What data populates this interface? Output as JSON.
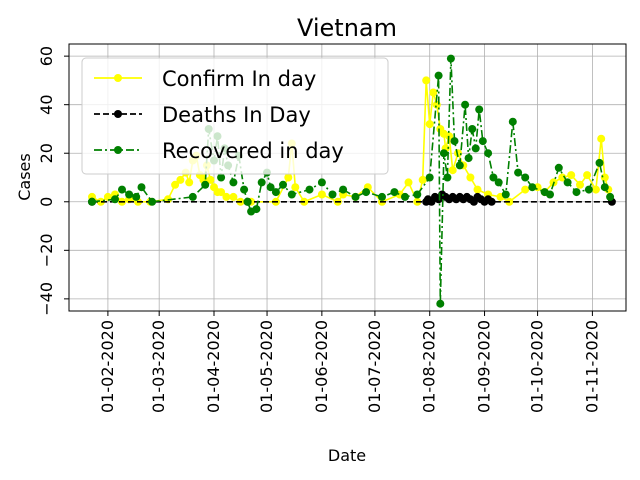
{
  "chart_data": {
    "type": "line",
    "title": "Vietnam",
    "xlabel": "Date",
    "ylabel": "Cases",
    "x_range": [
      "2020-01-10",
      "2020-11-20"
    ],
    "ylim": [
      -45,
      65
    ],
    "grid": true,
    "legend_placement": "top-left",
    "x_ticks": [
      "01-02-2020",
      "01-03-2020",
      "01-04-2020",
      "01-05-2020",
      "01-06-2020",
      "01-07-2020",
      "01-08-2020",
      "01-09-2020",
      "01-10-2020",
      "01-11-2020"
    ],
    "y_ticks": [
      "−40",
      "−20",
      "0",
      "20",
      "40",
      "60"
    ],
    "series": [
      {
        "name": "Confirm In day",
        "color": "#ffff00",
        "style": "solid",
        "points": [
          [
            "2020-01-23",
            2
          ],
          [
            "2020-01-28",
            0
          ],
          [
            "2020-02-01",
            2
          ],
          [
            "2020-02-05",
            3
          ],
          [
            "2020-02-09",
            0
          ],
          [
            "2020-02-13",
            1
          ],
          [
            "2020-02-18",
            0
          ],
          [
            "2020-02-25",
            0
          ],
          [
            "2020-03-06",
            1
          ],
          [
            "2020-03-10",
            7
          ],
          [
            "2020-03-13",
            9
          ],
          [
            "2020-03-16",
            12
          ],
          [
            "2020-03-18",
            8
          ],
          [
            "2020-03-20",
            17
          ],
          [
            "2020-03-22",
            19
          ],
          [
            "2020-03-24",
            11
          ],
          [
            "2020-03-26",
            9
          ],
          [
            "2020-03-28",
            15
          ],
          [
            "2020-03-30",
            9
          ],
          [
            "2020-04-01",
            6
          ],
          [
            "2020-04-03",
            4
          ],
          [
            "2020-04-05",
            4
          ],
          [
            "2020-04-08",
            2
          ],
          [
            "2020-04-12",
            2
          ],
          [
            "2020-04-16",
            0
          ],
          [
            "2020-04-22",
            0
          ],
          [
            "2020-05-06",
            0
          ],
          [
            "2020-05-13",
            10
          ],
          [
            "2020-05-15",
            24
          ],
          [
            "2020-05-17",
            6
          ],
          [
            "2020-05-22",
            0
          ],
          [
            "2020-06-01",
            3
          ],
          [
            "2020-06-10",
            0
          ],
          [
            "2020-06-13",
            3
          ],
          [
            "2020-06-20",
            2
          ],
          [
            "2020-06-27",
            6
          ],
          [
            "2020-07-05",
            0
          ],
          [
            "2020-07-15",
            3
          ],
          [
            "2020-07-20",
            8
          ],
          [
            "2020-07-25",
            0
          ],
          [
            "2020-07-28",
            9
          ],
          [
            "2020-07-30",
            50
          ],
          [
            "2020-08-01",
            32
          ],
          [
            "2020-08-03",
            45
          ],
          [
            "2020-08-05",
            40
          ],
          [
            "2020-08-07",
            30
          ],
          [
            "2020-08-09",
            28
          ],
          [
            "2020-08-10",
            22
          ],
          [
            "2020-08-12",
            27
          ],
          [
            "2020-08-14",
            13
          ],
          [
            "2020-08-17",
            20
          ],
          [
            "2020-08-20",
            15
          ],
          [
            "2020-08-24",
            10
          ],
          [
            "2020-08-28",
            5
          ],
          [
            "2020-09-03",
            3
          ],
          [
            "2020-09-10",
            2
          ],
          [
            "2020-09-15",
            0
          ],
          [
            "2020-09-24",
            5
          ],
          [
            "2020-10-01",
            6
          ],
          [
            "2020-10-05",
            4
          ],
          [
            "2020-10-10",
            8
          ],
          [
            "2020-10-15",
            10
          ],
          [
            "2020-10-20",
            11
          ],
          [
            "2020-10-25",
            7
          ],
          [
            "2020-10-29",
            11
          ],
          [
            "2020-11-03",
            5
          ],
          [
            "2020-11-06",
            26
          ],
          [
            "2020-11-08",
            10
          ],
          [
            "2020-11-10",
            5
          ]
        ]
      },
      {
        "name": "Deaths In Day",
        "color": "#000000",
        "style": "dashed",
        "points": [
          [
            "2020-01-23",
            0
          ],
          [
            "2020-04-20",
            0
          ],
          [
            "2020-07-30",
            0
          ],
          [
            "2020-07-31",
            1
          ],
          [
            "2020-08-02",
            0
          ],
          [
            "2020-08-04",
            2
          ],
          [
            "2020-08-06",
            1
          ],
          [
            "2020-08-08",
            3
          ],
          [
            "2020-08-10",
            2
          ],
          [
            "2020-08-12",
            1
          ],
          [
            "2020-08-14",
            2
          ],
          [
            "2020-08-16",
            1
          ],
          [
            "2020-08-18",
            2
          ],
          [
            "2020-08-20",
            1
          ],
          [
            "2020-08-22",
            2
          ],
          [
            "2020-08-24",
            1
          ],
          [
            "2020-08-26",
            0
          ],
          [
            "2020-08-28",
            2
          ],
          [
            "2020-08-30",
            1
          ],
          [
            "2020-09-01",
            0
          ],
          [
            "2020-09-03",
            1
          ],
          [
            "2020-09-05",
            0
          ],
          [
            "2020-11-12",
            0
          ]
        ]
      },
      {
        "name": "Recovered in day",
        "color": "#008000",
        "style": "dashdot",
        "points": [
          [
            "2020-01-23",
            0
          ],
          [
            "2020-02-05",
            1
          ],
          [
            "2020-02-09",
            5
          ],
          [
            "2020-02-13",
            3
          ],
          [
            "2020-02-17",
            2
          ],
          [
            "2020-02-20",
            6
          ],
          [
            "2020-02-26",
            0
          ],
          [
            "2020-03-20",
            2
          ],
          [
            "2020-03-27",
            7
          ],
          [
            "2020-03-29",
            30
          ],
          [
            "2020-04-01",
            17
          ],
          [
            "2020-04-03",
            27
          ],
          [
            "2020-04-05",
            10
          ],
          [
            "2020-04-07",
            22
          ],
          [
            "2020-04-09",
            15
          ],
          [
            "2020-04-12",
            8
          ],
          [
            "2020-04-15",
            19
          ],
          [
            "2020-04-18",
            5
          ],
          [
            "2020-04-20",
            0
          ],
          [
            "2020-04-22",
            -4
          ],
          [
            "2020-04-25",
            -3
          ],
          [
            "2020-04-28",
            8
          ],
          [
            "2020-05-01",
            12
          ],
          [
            "2020-05-03",
            6
          ],
          [
            "2020-05-06",
            4
          ],
          [
            "2020-05-10",
            7
          ],
          [
            "2020-05-15",
            3
          ],
          [
            "2020-05-25",
            5
          ],
          [
            "2020-06-01",
            8
          ],
          [
            "2020-06-07",
            3
          ],
          [
            "2020-06-13",
            5
          ],
          [
            "2020-06-20",
            2
          ],
          [
            "2020-06-26",
            4
          ],
          [
            "2020-07-05",
            2
          ],
          [
            "2020-07-12",
            4
          ],
          [
            "2020-07-18",
            2
          ],
          [
            "2020-07-25",
            3
          ],
          [
            "2020-08-01",
            10
          ],
          [
            "2020-08-06",
            52
          ],
          [
            "2020-08-07",
            -42
          ],
          [
            "2020-08-09",
            20
          ],
          [
            "2020-08-11",
            10
          ],
          [
            "2020-08-13",
            59
          ],
          [
            "2020-08-15",
            25
          ],
          [
            "2020-08-18",
            15
          ],
          [
            "2020-08-21",
            40
          ],
          [
            "2020-08-23",
            18
          ],
          [
            "2020-08-25",
            30
          ],
          [
            "2020-08-27",
            22
          ],
          [
            "2020-08-29",
            38
          ],
          [
            "2020-08-31",
            25
          ],
          [
            "2020-09-03",
            20
          ],
          [
            "2020-09-06",
            10
          ],
          [
            "2020-09-09",
            8
          ],
          [
            "2020-09-13",
            3
          ],
          [
            "2020-09-17",
            33
          ],
          [
            "2020-09-20",
            12
          ],
          [
            "2020-09-24",
            10
          ],
          [
            "2020-09-28",
            6
          ],
          [
            "2020-10-05",
            4
          ],
          [
            "2020-10-08",
            3
          ],
          [
            "2020-10-13",
            14
          ],
          [
            "2020-10-18",
            8
          ],
          [
            "2020-10-23",
            4
          ],
          [
            "2020-10-30",
            5
          ],
          [
            "2020-11-05",
            16
          ],
          [
            "2020-11-08",
            6
          ],
          [
            "2020-11-11",
            2
          ]
        ]
      }
    ]
  }
}
